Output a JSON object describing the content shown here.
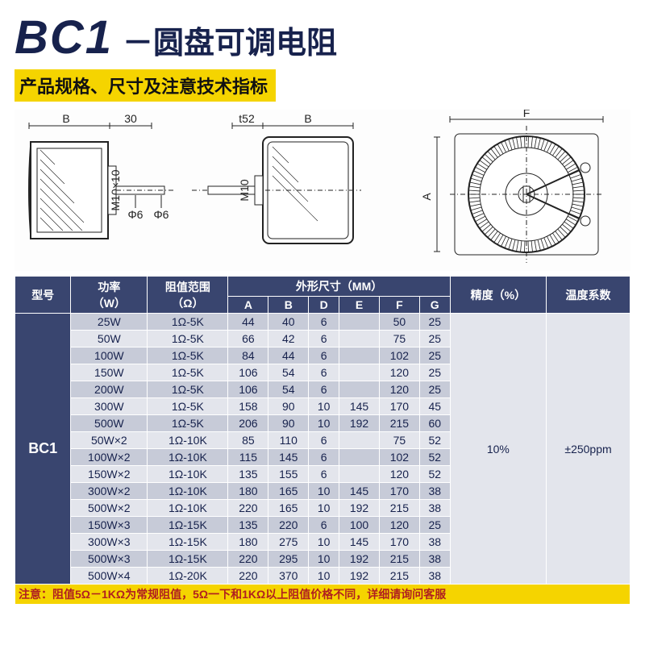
{
  "colors": {
    "header_blue": "#17224d",
    "yellow": "#f5d400",
    "black": "#111111",
    "table_header_bg": "#39456f",
    "table_header_fg": "#ffffff",
    "row_even": "#c7cbd8",
    "row_odd": "#e3e5ec",
    "footnote_bg": "#f5d400",
    "footnote_fg": "#b02020",
    "border": "#ffffff"
  },
  "title": {
    "code": "BC1",
    "name": "－圆盘可调电阻"
  },
  "subtitle": "产品规格、尺寸及注意技术指标",
  "diagram": {
    "labels": {
      "B": "B",
      "thirty": "30",
      "t52": "t52",
      "F": "F",
      "A": "A",
      "M10x10": "M10×10",
      "M10": "M10",
      "phi6a": "Φ6",
      "phi6b": "Φ6"
    }
  },
  "table": {
    "header": {
      "model": "型号",
      "power": "功率\n（W）",
      "range": "阻值范围\n（Ω）",
      "dims": "外形尺寸（MM）",
      "cols": [
        "A",
        "B",
        "D",
        "E",
        "F",
        "G"
      ],
      "precision": "精度（%）",
      "tempco": "温度系数"
    },
    "model": "BC1",
    "precision": "10%",
    "tempco": "±250ppm",
    "rows": [
      {
        "power": "25W",
        "range": "1Ω-5K",
        "A": "44",
        "B": "40",
        "D": "6",
        "E": "",
        "F": "50",
        "G": "25"
      },
      {
        "power": "50W",
        "range": "1Ω-5K",
        "A": "66",
        "B": "42",
        "D": "6",
        "E": "",
        "F": "75",
        "G": "25"
      },
      {
        "power": "100W",
        "range": "1Ω-5K",
        "A": "84",
        "B": "44",
        "D": "6",
        "E": "",
        "F": "102",
        "G": "25"
      },
      {
        "power": "150W",
        "range": "1Ω-5K",
        "A": "106",
        "B": "54",
        "D": "6",
        "E": "",
        "F": "120",
        "G": "25"
      },
      {
        "power": "200W",
        "range": "1Ω-5K",
        "A": "106",
        "B": "54",
        "D": "6",
        "E": "",
        "F": "120",
        "G": "25"
      },
      {
        "power": "300W",
        "range": "1Ω-5K",
        "A": "158",
        "B": "90",
        "D": "10",
        "E": "145",
        "F": "170",
        "G": "45"
      },
      {
        "power": "500W",
        "range": "1Ω-5K",
        "A": "206",
        "B": "90",
        "D": "10",
        "E": "192",
        "F": "215",
        "G": "60"
      },
      {
        "power": "50W×2",
        "range": "1Ω-10K",
        "A": "85",
        "B": "110",
        "D": "6",
        "E": "",
        "F": "75",
        "G": "52"
      },
      {
        "power": "100W×2",
        "range": "1Ω-10K",
        "A": "115",
        "B": "145",
        "D": "6",
        "E": "",
        "F": "102",
        "G": "52"
      },
      {
        "power": "150W×2",
        "range": "1Ω-10K",
        "A": "135",
        "B": "155",
        "D": "6",
        "E": "",
        "F": "120",
        "G": "52"
      },
      {
        "power": "300W×2",
        "range": "1Ω-10K",
        "A": "180",
        "B": "165",
        "D": "10",
        "E": "145",
        "F": "170",
        "G": "38"
      },
      {
        "power": "500W×2",
        "range": "1Ω-10K",
        "A": "220",
        "B": "165",
        "D": "10",
        "E": "192",
        "F": "215",
        "G": "38"
      },
      {
        "power": "150W×3",
        "range": "1Ω-15K",
        "A": "135",
        "B": "220",
        "D": "6",
        "E": "100",
        "F": "120",
        "G": "25"
      },
      {
        "power": "300W×3",
        "range": "1Ω-15K",
        "A": "180",
        "B": "275",
        "D": "10",
        "E": "145",
        "F": "170",
        "G": "38"
      },
      {
        "power": "500W×3",
        "range": "1Ω-15K",
        "A": "220",
        "B": "295",
        "D": "10",
        "E": "192",
        "F": "215",
        "G": "38"
      },
      {
        "power": "500W×4",
        "range": "1Ω-20K",
        "A": "220",
        "B": "370",
        "D": "10",
        "E": "192",
        "F": "215",
        "G": "38"
      }
    ],
    "footnote": "注意：阻值5Ω－1KΩ为常规阻值，5Ω一下和1KΩ以上阻值价格不同，详细请询问客服"
  }
}
